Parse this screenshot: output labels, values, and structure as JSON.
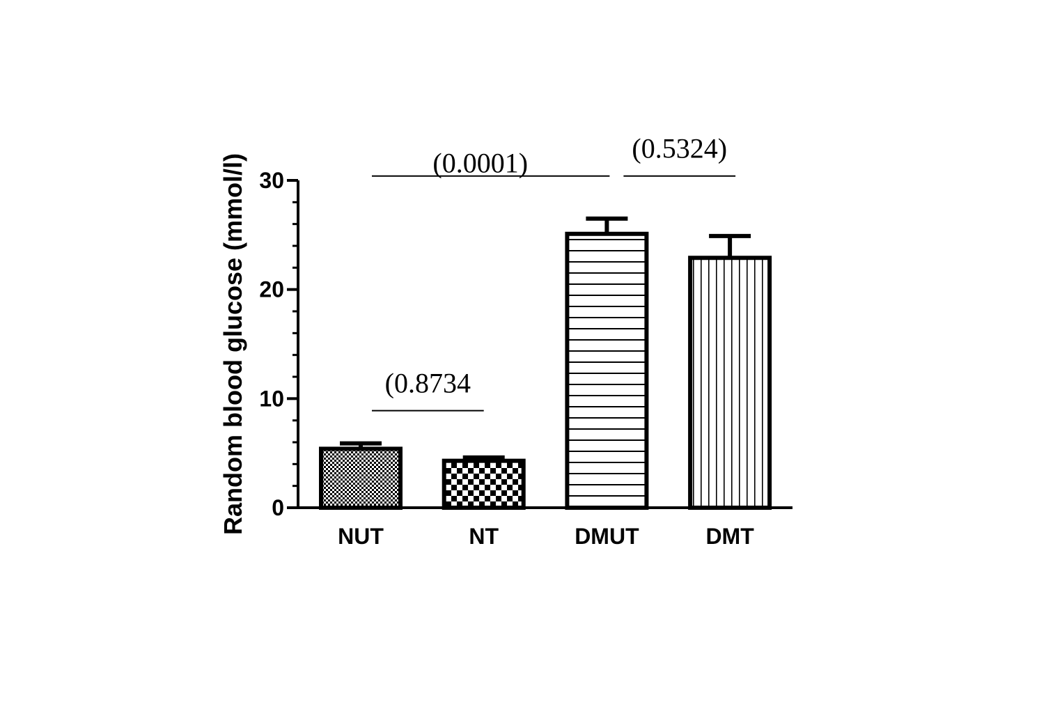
{
  "chart_data": {
    "type": "bar",
    "title": "",
    "xlabel": "",
    "ylabel": "Random blood glucose (mmol/l)",
    "ylim": [
      0,
      30
    ],
    "yticks": [
      0,
      10,
      20,
      30
    ],
    "minor_tick_step": 2,
    "grid": false,
    "categories": [
      "NUT",
      "NT",
      "DMUT",
      "DMT"
    ],
    "values": [
      5.4,
      4.3,
      25.1,
      22.9
    ],
    "error": [
      0.5,
      0.3,
      1.4,
      2.0
    ],
    "patterns": [
      "fine-checker",
      "checker",
      "horizontal-lines",
      "vertical-lines"
    ],
    "annotations": [
      {
        "text": "(0.8734",
        "from": "NUT",
        "to": "NT",
        "level": 8.9
      },
      {
        "text": "(0.0001)",
        "from": "NUT",
        "to": "DMUT",
        "level": 30.4
      },
      {
        "text": "(0.5324)",
        "from": "DMUT",
        "to": "DMT",
        "level": 30.4
      }
    ],
    "colors": {
      "stroke": "#000000",
      "fill": "#ffffff"
    }
  }
}
